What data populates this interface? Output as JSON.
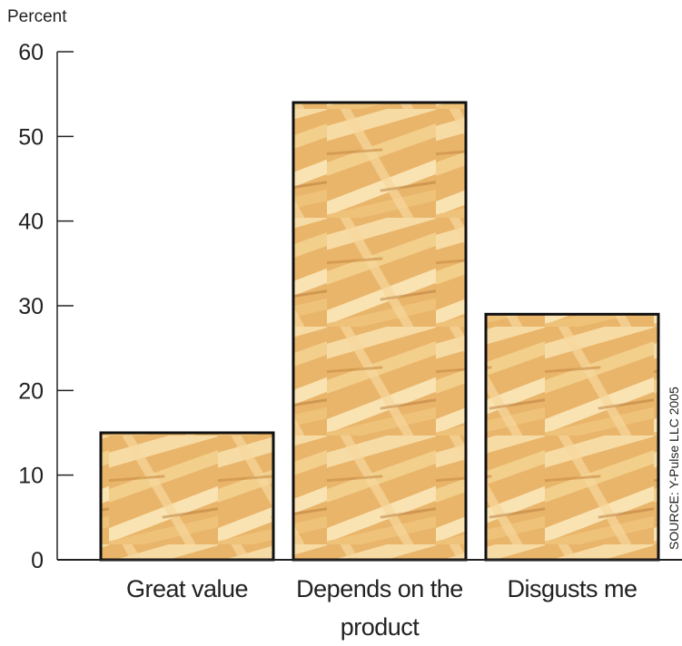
{
  "chart_data": {
    "type": "bar",
    "y_label": "Percent",
    "categories": [
      "Great value",
      "Depends on the product",
      "Disgusts me"
    ],
    "values": [
      15,
      54,
      29
    ],
    "ylim": [
      0,
      60
    ],
    "yticks": [
      0,
      10,
      20,
      30,
      40,
      50,
      60
    ],
    "source": "SOURCE: Y-Pulse LLC 2005"
  }
}
